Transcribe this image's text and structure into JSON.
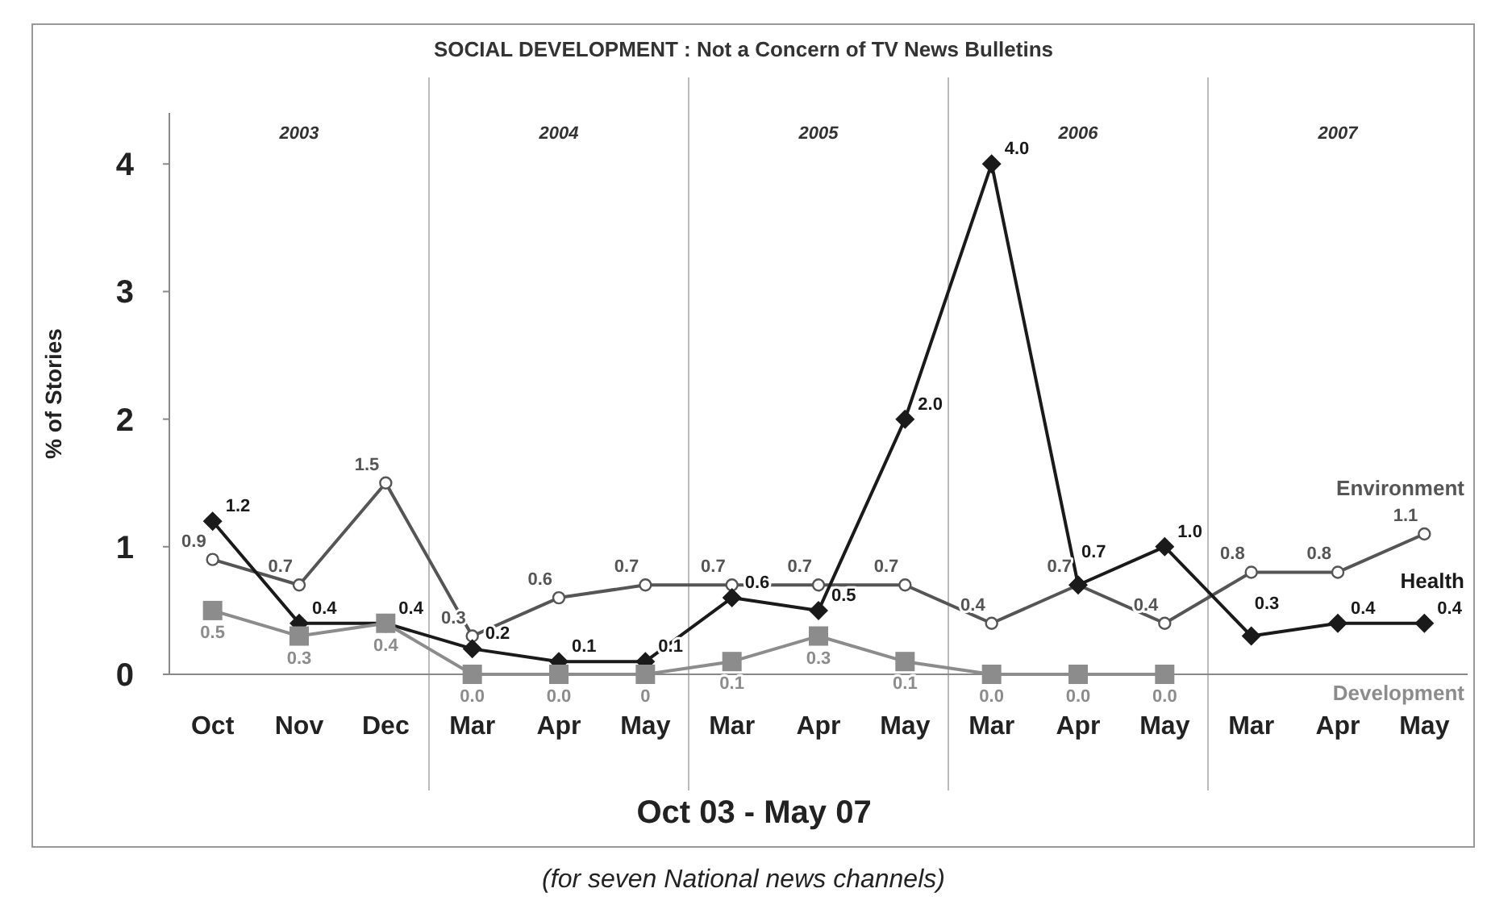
{
  "chart_data": {
    "type": "line",
    "title": "SOCIAL DEVELOPMENT : Not a Concern of TV News Bulletins",
    "subtitle": "(for seven National news channels)",
    "xlabel": "Oct 03 - May 07",
    "ylabel": "% of Stories",
    "categories": [
      "Oct",
      "Nov",
      "Dec",
      "Mar",
      "Apr",
      "May",
      "Mar",
      "Apr",
      "May",
      "Mar",
      "Apr",
      "May",
      "Mar",
      "Apr",
      "May"
    ],
    "annotations": [
      "2003",
      "2004",
      "2005",
      "2006",
      "2007"
    ],
    "series": [
      {
        "name": "Environment",
        "color": "#555555",
        "marker": "circle",
        "values": [
          0.9,
          0.7,
          1.5,
          0.3,
          0.6,
          0.7,
          0.7,
          0.7,
          0.7,
          0.4,
          0.7,
          0.4,
          0.8,
          0.8,
          1.1
        ],
        "value_labels": [
          "0.9",
          "0.7",
          "1.5",
          "0.3",
          "0.6",
          "0.7",
          "0.7",
          "0.7",
          "0.7",
          "0.4",
          "0.7",
          "0.4",
          "0.8",
          "0.8",
          "1.1"
        ]
      },
      {
        "name": "Health",
        "color": "#1a1a1a",
        "marker": "diamond",
        "values": [
          1.2,
          0.4,
          0.4,
          0.2,
          0.1,
          0.1,
          0.6,
          0.5,
          2.0,
          4.0,
          0.7,
          1.0,
          0.3,
          0.4,
          0.4
        ],
        "value_labels": [
          "1.2",
          "0.4",
          "0.4",
          "0.2",
          "0.1",
          "0.1",
          "0.6",
          "0.5",
          "2.0",
          "4.0",
          "0.7",
          "1.0",
          "0.3",
          "0.4",
          "0.4"
        ]
      },
      {
        "name": "Development",
        "color": "#8c8c8c",
        "marker": "square",
        "values": [
          0.5,
          0.3,
          0.4,
          0.0,
          0.0,
          0,
          0.1,
          0.3,
          0.1,
          0.0,
          0.0,
          0.0,
          null,
          null,
          null
        ],
        "value_labels": [
          "0.5",
          "0.3",
          "0.4",
          "0.0",
          "0.0",
          "0",
          "0.1",
          "0.3",
          "0.1",
          "0.0",
          "0.0",
          "0.0",
          null,
          null,
          null
        ]
      }
    ],
    "ylim": [
      0,
      4.4
    ],
    "yticks": [
      0,
      1,
      2,
      3,
      4
    ]
  }
}
